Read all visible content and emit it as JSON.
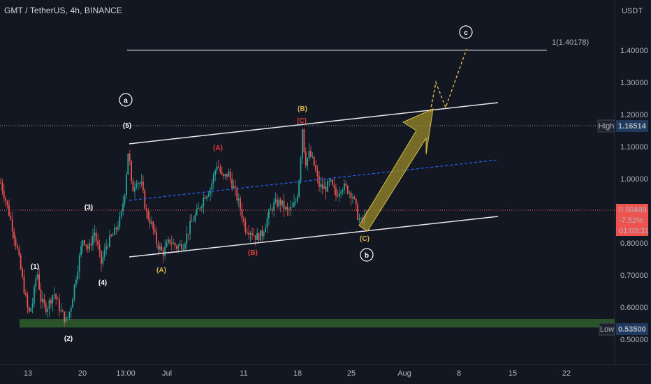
{
  "header": {
    "symbol": "GMT / TetherUS, 4h, BINANCE"
  },
  "price_axis": {
    "currency": "USDT"
  },
  "badges": {
    "high_label": "High",
    "high_value": "1.16514",
    "current_value": "0.90489",
    "current_change": "-7.52%",
    "current_timer": "01:03:31",
    "low_label": "Low",
    "low_value": "0.53500"
  },
  "target_label": "1(1.40178)",
  "wave_labels": {
    "a": "a",
    "b": "b",
    "c": "c",
    "w1": "(1)",
    "w2": "(2)",
    "w3": "(3)",
    "w4": "(4)",
    "w5": "(5)",
    "A1": "(A)",
    "B1": "(B)",
    "C1": "(C)",
    "A2": "(A)",
    "B2": "(B)",
    "C2": "(C)"
  },
  "colors": {
    "background": "#131722",
    "bull": "#26a69a",
    "bear": "#ef5350",
    "channel": "#e8e8e8",
    "midline": "#2962ff",
    "projection": "#c9b24a",
    "support_zone": "#2e5a2a",
    "label_yellow": "#d4b14a",
    "label_red": "#e5393a"
  },
  "chart_data": {
    "type": "candlestick",
    "title": "GMT / TetherUS, 4h, BINANCE",
    "x_ticks": [
      "13",
      "20",
      "13:00",
      "Jul",
      "11",
      "18",
      "25",
      "Aug",
      "8",
      "15",
      "22"
    ],
    "y_ticks": [
      "1.40000",
      "1.30000",
      "1.20000",
      "1.10000",
      "1.00000",
      "0.80000",
      "0.70000",
      "0.60000",
      "0.50000"
    ],
    "ylim": [
      0.47,
      1.52
    ],
    "key_levels": {
      "high": 1.16514,
      "current": 0.90489,
      "low": 0.535,
      "fib_target": 1.40178
    },
    "price_path": [
      [
        0,
        0.99
      ],
      [
        8,
        0.93
      ],
      [
        16,
        0.86
      ],
      [
        24,
        0.78
      ],
      [
        32,
        0.68
      ],
      [
        40,
        0.58
      ],
      [
        46,
        0.62
      ],
      [
        52,
        0.72
      ],
      [
        58,
        0.62
      ],
      [
        66,
        0.6
      ],
      [
        76,
        0.65
      ],
      [
        86,
        0.59
      ],
      [
        94,
        0.56
      ],
      [
        100,
        0.6
      ],
      [
        108,
        0.7
      ],
      [
        118,
        0.82
      ],
      [
        126,
        0.78
      ],
      [
        134,
        0.84
      ],
      [
        144,
        0.74
      ],
      [
        152,
        0.8
      ],
      [
        162,
        0.83
      ],
      [
        172,
        0.88
      ],
      [
        178,
        0.97
      ],
      [
        183,
        1.1
      ],
      [
        188,
        0.96
      ],
      [
        194,
        1.0
      ],
      [
        202,
        0.98
      ],
      [
        208,
        0.9
      ],
      [
        216,
        0.86
      ],
      [
        224,
        0.8
      ],
      [
        232,
        0.77
      ],
      [
        242,
        0.81
      ],
      [
        252,
        0.79
      ],
      [
        262,
        0.8
      ],
      [
        272,
        0.86
      ],
      [
        282,
        0.9
      ],
      [
        292,
        0.95
      ],
      [
        300,
        0.97
      ],
      [
        310,
        1.05
      ],
      [
        318,
        1.0
      ],
      [
        326,
        1.02
      ],
      [
        334,
        0.97
      ],
      [
        342,
        0.92
      ],
      [
        350,
        0.85
      ],
      [
        358,
        0.84
      ],
      [
        366,
        0.82
      ],
      [
        374,
        0.83
      ],
      [
        382,
        0.88
      ],
      [
        390,
        0.92
      ],
      [
        400,
        0.93
      ],
      [
        410,
        0.9
      ],
      [
        418,
        0.91
      ],
      [
        424,
        0.94
      ],
      [
        428,
        1.02
      ],
      [
        432,
        1.16
      ],
      [
        436,
        1.05
      ],
      [
        442,
        1.08
      ],
      [
        448,
        1.05
      ],
      [
        456,
        0.98
      ],
      [
        464,
        0.97
      ],
      [
        472,
        0.99
      ],
      [
        480,
        0.95
      ],
      [
        488,
        0.98
      ],
      [
        496,
        0.97
      ],
      [
        504,
        0.95
      ],
      [
        512,
        0.88
      ],
      [
        518,
        0.86
      ],
      [
        524,
        0.9
      ]
    ],
    "annotations": [
      "a",
      "b",
      "c",
      "(1)",
      "(2)",
      "(3)",
      "(4)",
      "(5)",
      "(A)",
      "(B)",
      "(C)",
      "(A)",
      "(B)",
      "(C)",
      "1(1.40178)"
    ]
  }
}
